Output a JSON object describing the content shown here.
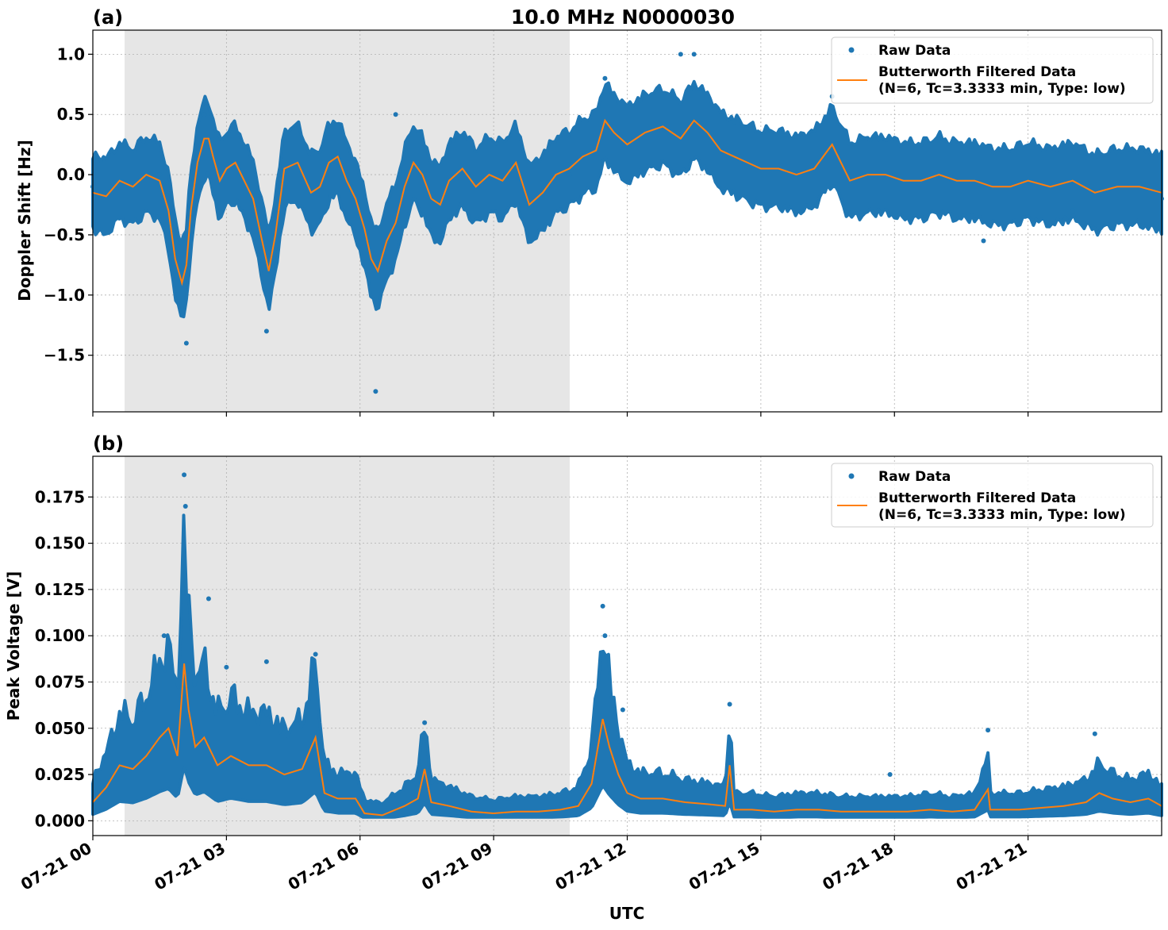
{
  "figure_title": "10.0 MHz N0000030",
  "x_axis_label": "UTC",
  "x_tick_labels": [
    "07-21 00",
    "07-21 03",
    "07-21 06",
    "07-21 09",
    "07-21 12",
    "07-21 15",
    "07-21 18",
    "07-21 21"
  ],
  "colors": {
    "raw": "#1f77b4",
    "filtered": "#ff7f0e",
    "night_shade": "#e6e6e6",
    "grid": "#b0b0b0"
  },
  "legend": {
    "raw_label": "Raw Data",
    "filtered_label_line1": "Butterworth Filtered Data",
    "filtered_label_line2": "(N=6, Tc=3.3333 min, Type: low)"
  },
  "chart_data": [
    {
      "type": "scatter",
      "panel_label": "(a)",
      "title": "10.0 MHz N0000030",
      "xlabel": "",
      "ylabel": "Doppler Shift [Hz]",
      "x_unit": "hours UTC on 07-21",
      "xlim": [
        0,
        24
      ],
      "ylim": [
        -1.97,
        1.2
      ],
      "y_ticks": [
        1.0,
        0.5,
        0.0,
        -0.5,
        -1.0,
        -1.5
      ],
      "y_tick_labels": [
        "1.0",
        "0.5",
        "0.0",
        "−0.5",
        "−1.0",
        "−1.5"
      ],
      "shaded_interval_hours": [
        0.72,
        10.72
      ],
      "grid": true,
      "legend_position": "upper right",
      "series": [
        {
          "name": "Butterworth Filtered Data (N=6, Tc=3.3333 min, Type: low)",
          "style": "line",
          "x": [
            0,
            0.3,
            0.6,
            0.9,
            1.2,
            1.5,
            1.7,
            1.85,
            2.0,
            2.1,
            2.2,
            2.35,
            2.5,
            2.6,
            2.7,
            2.85,
            3.0,
            3.2,
            3.4,
            3.6,
            3.8,
            3.95,
            4.1,
            4.3,
            4.6,
            4.9,
            5.1,
            5.3,
            5.5,
            5.7,
            5.9,
            6.1,
            6.25,
            6.4,
            6.6,
            6.8,
            7.0,
            7.2,
            7.4,
            7.6,
            7.8,
            8.0,
            8.3,
            8.6,
            8.9,
            9.2,
            9.5,
            9.8,
            10.1,
            10.4,
            10.7,
            11.0,
            11.3,
            11.5,
            11.7,
            12.0,
            12.4,
            12.8,
            13.2,
            13.5,
            13.8,
            14.1,
            14.4,
            14.7,
            15.0,
            15.4,
            15.8,
            16.2,
            16.6,
            16.8,
            17.0,
            17.4,
            17.8,
            18.2,
            18.6,
            19.0,
            19.4,
            19.8,
            20.2,
            20.6,
            21.0,
            21.5,
            22.0,
            22.5,
            23.0,
            23.5,
            24.0
          ],
          "y": [
            -0.15,
            -0.18,
            -0.05,
            -0.1,
            0.0,
            -0.05,
            -0.3,
            -0.7,
            -0.9,
            -0.75,
            -0.3,
            0.1,
            0.3,
            0.3,
            0.15,
            -0.05,
            0.05,
            0.1,
            -0.05,
            -0.2,
            -0.55,
            -0.8,
            -0.5,
            0.05,
            0.1,
            -0.15,
            -0.1,
            0.1,
            0.15,
            -0.05,
            -0.2,
            -0.45,
            -0.7,
            -0.8,
            -0.55,
            -0.4,
            -0.1,
            0.1,
            0.0,
            -0.2,
            -0.25,
            -0.05,
            0.05,
            -0.1,
            0.0,
            -0.05,
            0.1,
            -0.25,
            -0.15,
            0.0,
            0.05,
            0.15,
            0.2,
            0.45,
            0.35,
            0.25,
            0.35,
            0.4,
            0.3,
            0.45,
            0.35,
            0.2,
            0.15,
            0.1,
            0.05,
            0.05,
            0.0,
            0.05,
            0.25,
            0.1,
            -0.05,
            0.0,
            0.0,
            -0.05,
            -0.05,
            0.0,
            -0.05,
            -0.05,
            -0.1,
            -0.1,
            -0.05,
            -0.1,
            -0.05,
            -0.15,
            -0.1,
            -0.1,
            -0.15
          ]
        },
        {
          "name": "Raw Data",
          "style": "points",
          "x": [
            0,
            1.5,
            2.1,
            2.5,
            3.9,
            6.35,
            6.8,
            10.7,
            11.5,
            13.2,
            13.5,
            16.6,
            18.0,
            20.0,
            22.0,
            24.0
          ],
          "y": [
            -0.1,
            0.0,
            -1.4,
            0.5,
            -1.3,
            -1.8,
            0.5,
            0.0,
            0.8,
            1.0,
            1.0,
            0.65,
            0.0,
            -0.55,
            -0.3,
            -0.2
          ]
        }
      ]
    },
    {
      "type": "scatter",
      "panel_label": "(b)",
      "title": "",
      "xlabel": "UTC",
      "ylabel": "Peak Voltage [V]",
      "x_unit": "hours UTC on 07-21",
      "xlim": [
        0,
        24
      ],
      "ylim": [
        -0.008,
        0.197
      ],
      "y_ticks": [
        0.0,
        0.025,
        0.05,
        0.075,
        0.1,
        0.125,
        0.15,
        0.175
      ],
      "y_tick_labels": [
        "0.000",
        "0.025",
        "0.050",
        "0.075",
        "0.100",
        "0.125",
        "0.150",
        "0.175"
      ],
      "shaded_interval_hours": [
        0.72,
        10.72
      ],
      "grid": true,
      "legend_position": "upper right",
      "series": [
        {
          "name": "Butterworth Filtered Data (N=6, Tc=3.3333 min, Type: low)",
          "style": "line",
          "x": [
            0,
            0.3,
            0.6,
            0.9,
            1.2,
            1.5,
            1.7,
            1.9,
            2.05,
            2.15,
            2.3,
            2.5,
            2.8,
            3.1,
            3.5,
            3.9,
            4.3,
            4.7,
            5.0,
            5.2,
            5.5,
            5.9,
            6.1,
            6.5,
            7.0,
            7.3,
            7.45,
            7.6,
            8.0,
            8.5,
            9.0,
            9.5,
            10.0,
            10.5,
            10.9,
            11.2,
            11.45,
            11.6,
            11.8,
            12.0,
            12.3,
            12.8,
            13.3,
            13.8,
            14.2,
            14.3,
            14.4,
            14.8,
            15.3,
            15.8,
            16.3,
            16.8,
            17.3,
            17.8,
            18.3,
            18.8,
            19.3,
            19.8,
            20.1,
            20.15,
            20.3,
            20.8,
            21.3,
            21.8,
            22.3,
            22.6,
            22.9,
            23.3,
            23.7,
            24.0
          ],
          "y": [
            0.01,
            0.018,
            0.03,
            0.028,
            0.035,
            0.045,
            0.05,
            0.035,
            0.085,
            0.06,
            0.04,
            0.045,
            0.03,
            0.035,
            0.03,
            0.03,
            0.025,
            0.028,
            0.045,
            0.015,
            0.012,
            0.012,
            0.004,
            0.003,
            0.008,
            0.012,
            0.028,
            0.01,
            0.008,
            0.005,
            0.004,
            0.005,
            0.005,
            0.006,
            0.008,
            0.02,
            0.055,
            0.04,
            0.025,
            0.015,
            0.012,
            0.012,
            0.01,
            0.009,
            0.008,
            0.03,
            0.006,
            0.006,
            0.005,
            0.006,
            0.006,
            0.005,
            0.005,
            0.005,
            0.005,
            0.006,
            0.005,
            0.006,
            0.017,
            0.006,
            0.006,
            0.006,
            0.007,
            0.008,
            0.01,
            0.015,
            0.012,
            0.01,
            0.012,
            0.008
          ]
        },
        {
          "name": "Raw Data",
          "style": "points",
          "x": [
            1.6,
            2.05,
            2.08,
            2.6,
            3.0,
            3.9,
            5.0,
            7.45,
            11.45,
            11.5,
            11.9,
            14.3,
            17.9,
            20.1,
            22.5
          ],
          "y": [
            0.1,
            0.187,
            0.17,
            0.12,
            0.083,
            0.086,
            0.09,
            0.053,
            0.116,
            0.1,
            0.06,
            0.063,
            0.025,
            0.049,
            0.047
          ]
        }
      ]
    }
  ]
}
